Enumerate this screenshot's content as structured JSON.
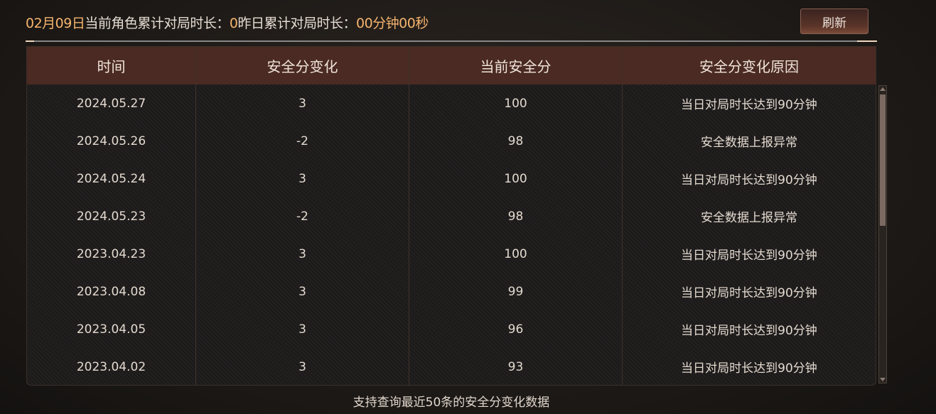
{
  "header": {
    "date": "02月09日",
    "label1": "当前角色累计对局时长：",
    "value1": "0",
    "label2": "昨日累计对局时长：",
    "value2": "00分钟00秒",
    "refresh_label": "刷新"
  },
  "table": {
    "columns": [
      "时间",
      "安全分变化",
      "当前安全分",
      "安全分变化原因"
    ],
    "rows": [
      [
        "2024.05.27",
        "3",
        "100",
        "当日对局时长达到90分钟"
      ],
      [
        "2024.05.26",
        "-2",
        "98",
        "安全数据上报异常"
      ],
      [
        "2024.05.24",
        "3",
        "100",
        "当日对局时长达到90分钟"
      ],
      [
        "2024.05.23",
        "-2",
        "98",
        "安全数据上报异常"
      ],
      [
        "2023.04.23",
        "3",
        "100",
        "当日对局时长达到90分钟"
      ],
      [
        "2023.04.08",
        "3",
        "99",
        "当日对局时长达到90分钟"
      ],
      [
        "2023.04.05",
        "3",
        "96",
        "当日对局时长达到90分钟"
      ],
      [
        "2023.04.02",
        "3",
        "93",
        "当日对局时长达到90分钟"
      ]
    ]
  },
  "footer": "支持查询最近50条的安全分变化数据",
  "colors": {
    "accent": "#f5b46e",
    "header_bg": "#4a2a22"
  }
}
